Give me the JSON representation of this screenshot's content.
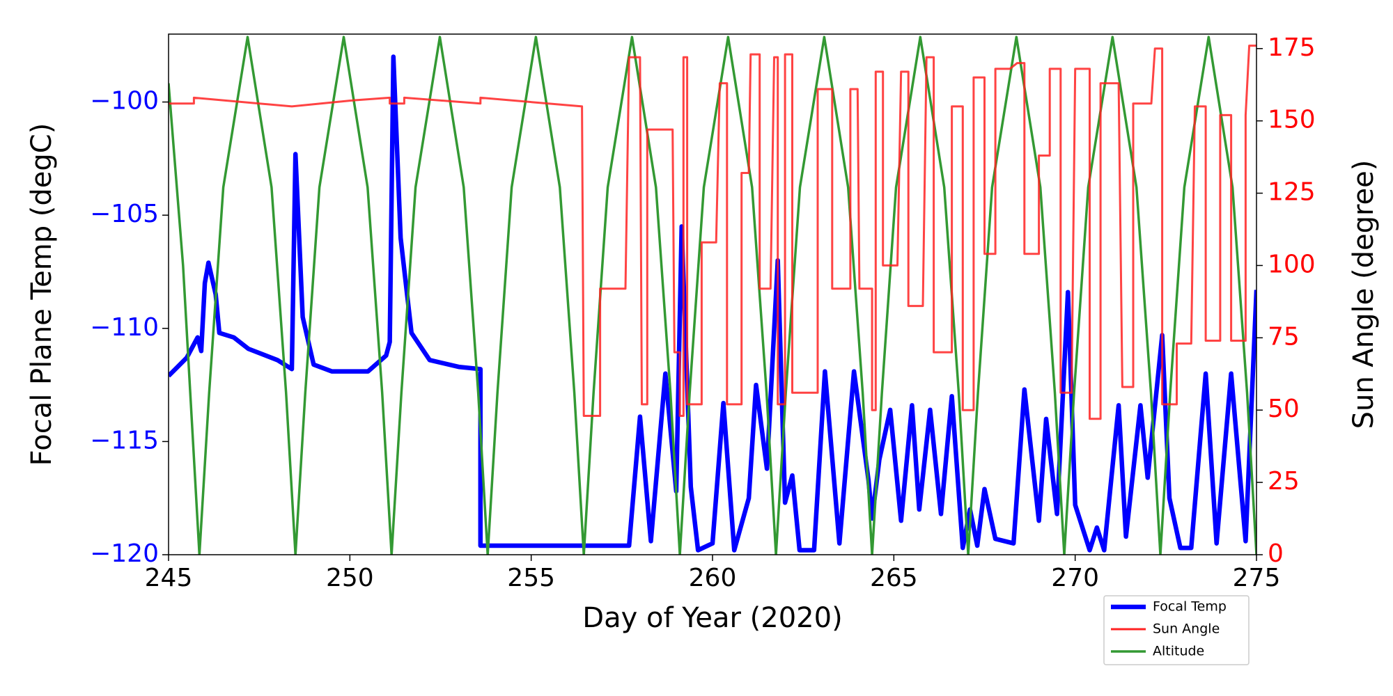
{
  "chart_data": {
    "type": "line",
    "xlabel": "Day of Year (2020)",
    "ylabel": "Focal Plane Temp (degC)",
    "y2label": "Sun Angle (degree)",
    "xlim": [
      245,
      275
    ],
    "xticks": [
      245,
      250,
      255,
      260,
      265,
      270,
      275
    ],
    "ylim": [
      -120,
      -97
    ],
    "yticks": [
      {
        "value": -120,
        "label": "−120"
      },
      {
        "value": -115,
        "label": "−115"
      },
      {
        "value": -110,
        "label": "−110"
      },
      {
        "value": -105,
        "label": "−105"
      },
      {
        "value": -100,
        "label": "−100"
      }
    ],
    "y2lim": [
      0,
      180
    ],
    "y2ticks": [
      0,
      25,
      50,
      75,
      100,
      125,
      150,
      175
    ],
    "ycolor": "#0000ff",
    "y2color": "#ff0000",
    "legend": "outside lower right",
    "series": [
      {
        "name": "Focal Temp",
        "color": "#0000ff",
        "axis": "y",
        "x": [
          245,
          245.5,
          245.8,
          245.9,
          246.0,
          246.1,
          246.3,
          246.4,
          246.8,
          247.2,
          248.0,
          248.4,
          248.5,
          248.7,
          249.0,
          249.5,
          250.5,
          251.0,
          251.1,
          251.2,
          251.4,
          251.7,
          252.2,
          253.0,
          253.6,
          253.6,
          257.7,
          258.0,
          258.3,
          258.7,
          259.0,
          259.15,
          259.4,
          259.6,
          260.0,
          260.3,
          260.6,
          261.0,
          261.2,
          261.5,
          261.8,
          262.0,
          262.2,
          262.4,
          262.8,
          263.1,
          263.5,
          263.9,
          264.3,
          264.4,
          264.6,
          264.9,
          265.2,
          265.5,
          265.7,
          266.0,
          266.3,
          266.6,
          266.9,
          267.1,
          267.3,
          267.5,
          267.8,
          268.3,
          268.6,
          269.0,
          269.2,
          269.5,
          269.8,
          270.0,
          270.4,
          270.6,
          270.8,
          271.2,
          271.4,
          271.8,
          272.0,
          272.4,
          272.6,
          272.9,
          273.2,
          273.6,
          273.9,
          274.3,
          274.7,
          275
        ],
        "values": [
          -112.1,
          -111.3,
          -110.4,
          -111,
          -108,
          -107.1,
          -108.5,
          -110.2,
          -110.4,
          -110.9,
          -111.4,
          -111.8,
          -102.3,
          -109.5,
          -111.6,
          -111.9,
          -111.9,
          -111.2,
          -110.6,
          -98,
          -106,
          -110.2,
          -111.4,
          -111.7,
          -111.8,
          -119.6,
          -119.6,
          -113.9,
          -119.4,
          -112,
          -117.2,
          -105.5,
          -117,
          -119.8,
          -119.5,
          -113.3,
          -119.8,
          -117.5,
          -112.5,
          -116.2,
          -107,
          -117.7,
          -116.5,
          -119.8,
          -119.8,
          -111.9,
          -119.5,
          -111.9,
          -116.7,
          -118.4,
          -115.8,
          -113.6,
          -118.5,
          -113.4,
          -118,
          -113.6,
          -118.2,
          -113,
          -119.7,
          -118,
          -119.6,
          -117.1,
          -119.3,
          -119.5,
          -112.7,
          -118.5,
          -114,
          -118.2,
          -108.4,
          -117.8,
          -119.8,
          -118.8,
          -119.8,
          -113.4,
          -119.2,
          -113.4,
          -116.6,
          -110.3,
          -117.5,
          -119.7,
          -119.7,
          -112,
          -119.5,
          -112,
          -119.4,
          -108.3
        ]
      },
      {
        "name": "Sun Angle",
        "color": "#ff2222",
        "axis": "y2",
        "x": [
          245,
          245.7,
          245.7,
          248.4,
          250.0,
          251.1,
          251.1,
          251.5,
          251.5,
          253.6,
          253.6,
          256.4,
          256.45,
          256.9,
          256.9,
          257.6,
          257.7,
          258.0,
          258.05,
          258.2,
          258.2,
          258.9,
          258.95,
          259.1,
          259.1,
          259.2,
          259.2,
          259.3,
          259.3,
          259.7,
          259.7,
          260.1,
          260.2,
          260.4,
          260.4,
          260.8,
          260.8,
          261.0,
          261.05,
          261.3,
          261.3,
          261.6,
          261.7,
          261.8,
          261.8,
          262.0,
          262.0,
          262.2,
          262.2,
          262.9,
          262.9,
          263.3,
          263.3,
          263.8,
          263.8,
          264.0,
          264.05,
          264.4,
          264.4,
          264.5,
          264.5,
          264.7,
          264.7,
          265.1,
          265.2,
          265.4,
          265.4,
          265.8,
          265.9,
          266.1,
          266.1,
          266.6,
          266.6,
          266.9,
          266.9,
          267.2,
          267.2,
          267.5,
          267.5,
          267.8,
          267.8,
          268.2,
          268.4,
          268.6,
          268.6,
          269.0,
          269.0,
          269.3,
          269.3,
          269.6,
          269.6,
          269.9,
          270.0,
          270.4,
          270.4,
          270.7,
          270.7,
          271.2,
          271.3,
          271.6,
          271.6,
          272.1,
          272.2,
          272.4,
          272.4,
          272.8,
          272.8,
          273.2,
          273.3,
          273.6,
          273.6,
          274.0,
          274.0,
          274.3,
          274.3,
          274.7,
          274.7,
          274.8,
          275
        ],
        "values": [
          156,
          156,
          158,
          155,
          157,
          158,
          156,
          156,
          158,
          156,
          158,
          155,
          48,
          48,
          92,
          92,
          172,
          172,
          52,
          52,
          147,
          147,
          70,
          70,
          48,
          48,
          172,
          172,
          52,
          52,
          108,
          108,
          163,
          163,
          52,
          52,
          132,
          132,
          173,
          173,
          92,
          92,
          172,
          172,
          52,
          52,
          173,
          173,
          56,
          56,
          161,
          161,
          92,
          92,
          161,
          161,
          92,
          92,
          50,
          50,
          167,
          167,
          100,
          100,
          167,
          167,
          86,
          86,
          172,
          172,
          70,
          70,
          155,
          155,
          50,
          50,
          165,
          165,
          104,
          104,
          168,
          168,
          170,
          170,
          104,
          104,
          138,
          138,
          168,
          168,
          56,
          56,
          168,
          168,
          47,
          47,
          163,
          163,
          58,
          58,
          156,
          156,
          175,
          175,
          52,
          52,
          73,
          73,
          155,
          155,
          74,
          74,
          152,
          152,
          74,
          74,
          152,
          176,
          176
        ]
      },
      {
        "name": "Altitude",
        "color": "#339933",
        "axis": "y2",
        "x": [
          245,
          245.4,
          245.85,
          246.12,
          246.51,
          247.18,
          247.84,
          248.24,
          248.5,
          248.77,
          249.16,
          249.83,
          250.49,
          250.89,
          251.15,
          251.42,
          251.81,
          252.48,
          253.14,
          253.54,
          253.8,
          254.07,
          254.46,
          255.13,
          255.79,
          256.19,
          256.45,
          256.72,
          257.11,
          257.78,
          258.44,
          258.84,
          259.1,
          259.37,
          259.76,
          260.43,
          261.09,
          261.49,
          261.75,
          262.02,
          262.41,
          263.08,
          263.74,
          264.14,
          264.4,
          264.67,
          265.06,
          265.73,
          266.39,
          266.79,
          267.05,
          267.32,
          267.71,
          268.38,
          269.04,
          269.44,
          269.7,
          269.97,
          270.36,
          271.03,
          271.69,
          272.09,
          272.35,
          272.62,
          273.01,
          273.68,
          274.34,
          274.74,
          275.0
        ],
        "values": [
          163,
          100,
          0,
          56,
          127,
          179,
          127,
          56,
          0,
          56,
          127,
          179,
          127,
          56,
          0,
          56,
          127,
          179,
          127,
          56,
          0,
          56,
          127,
          179,
          127,
          56,
          0,
          56,
          127,
          179,
          127,
          56,
          0,
          56,
          127,
          179,
          127,
          56,
          0,
          56,
          127,
          179,
          127,
          56,
          0,
          56,
          127,
          179,
          127,
          56,
          0,
          56,
          127,
          179,
          127,
          56,
          0,
          56,
          127,
          179,
          127,
          56,
          0,
          56,
          127,
          179,
          127,
          56,
          0
        ]
      }
    ]
  }
}
